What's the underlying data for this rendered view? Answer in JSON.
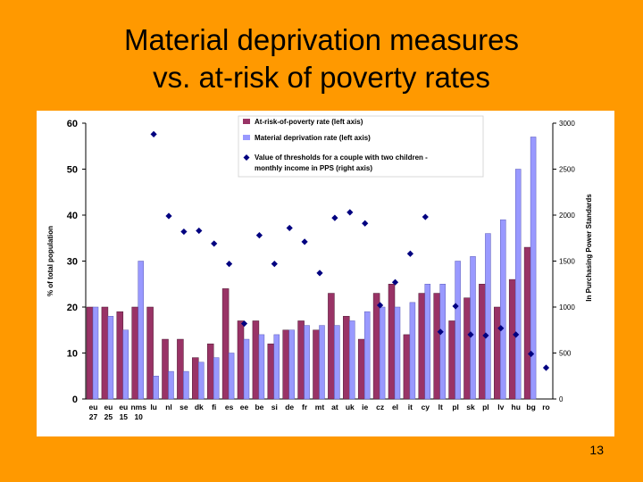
{
  "slide": {
    "title_line1": "Material deprivation measures",
    "title_line2": "vs. at-risk of poverty rates",
    "number": "13"
  },
  "colors": {
    "background": "#FF9900",
    "panel": "#FFFFFF",
    "poverty_bar": "#993366",
    "deprivation_bar": "#9999FF",
    "threshold_marker": "#000080"
  },
  "chart_data": {
    "type": "bar",
    "categories": [
      "eu 27",
      "eu 25",
      "eu 15",
      "nms 10",
      "lu",
      "nl",
      "se",
      "dk",
      "fi",
      "es",
      "ee",
      "be",
      "si",
      "de",
      "fr",
      "mt",
      "at",
      "uk",
      "ie",
      "cz",
      "el",
      "it",
      "cy",
      "lt",
      "pl",
      "sk",
      "pl",
      "lv",
      "hu",
      "bg",
      "ro"
    ],
    "category_lines": [
      [
        "eu",
        "27"
      ],
      [
        "eu",
        "25"
      ],
      [
        "eu",
        "15"
      ],
      [
        "nms",
        "10"
      ],
      [
        "lu"
      ],
      [
        "nl"
      ],
      [
        "se"
      ],
      [
        "dk"
      ],
      [
        "fi"
      ],
      [
        "es"
      ],
      [
        "ee"
      ],
      [
        "be"
      ],
      [
        "si"
      ],
      [
        "de"
      ],
      [
        "fr"
      ],
      [
        "mt"
      ],
      [
        "at"
      ],
      [
        "uk"
      ],
      [
        "ie"
      ],
      [
        "cz"
      ],
      [
        "el"
      ],
      [
        "it"
      ],
      [
        "cy"
      ],
      [
        "lt"
      ],
      [
        "pl"
      ],
      [
        "sk"
      ],
      [
        "pl"
      ],
      [
        "lv"
      ],
      [
        "hu"
      ],
      [
        "bg"
      ],
      [
        "ro"
      ]
    ],
    "series": [
      {
        "name": "At-risk-of-poverty rate (left axis)",
        "axis": "left",
        "kind": "bar",
        "values": [
          20,
          20,
          19,
          20,
          20,
          13,
          13,
          9,
          12,
          24,
          17,
          17,
          12,
          15,
          17,
          15,
          23,
          18,
          13,
          23,
          25,
          14,
          23,
          23,
          17,
          22,
          25,
          20,
          26,
          33,
          null
        ]
      },
      {
        "name": "Material deprivation rate (left axis)",
        "axis": "left",
        "kind": "bar",
        "values": [
          20,
          18,
          15,
          30,
          5,
          6,
          6,
          8,
          9,
          10,
          13,
          14,
          14,
          15,
          16,
          16,
          16,
          17,
          19,
          20,
          20,
          21,
          25,
          25,
          30,
          31,
          36,
          39,
          50,
          57,
          null
        ]
      },
      {
        "name": "Value of thresholds for a couple with two children - monthly income in PPS (right axis)",
        "axis": "right",
        "kind": "marker",
        "values": [
          null,
          null,
          null,
          null,
          2880,
          1990,
          1820,
          1830,
          1690,
          1470,
          820,
          1780,
          1470,
          1860,
          1710,
          1370,
          1970,
          2030,
          1910,
          1020,
          1270,
          1580,
          1980,
          730,
          1010,
          700,
          690,
          770,
          700,
          490,
          340
        ]
      }
    ],
    "left_axis": {
      "label": "% of total population",
      "min": 0,
      "max": 60,
      "ticks": [
        0,
        10,
        20,
        30,
        40,
        50,
        60
      ]
    },
    "right_axis": {
      "label": "In Purchasing Power Standards",
      "min": 0,
      "max": 3000,
      "ticks": [
        0,
        500,
        1000,
        1500,
        2000,
        2500,
        3000
      ]
    },
    "legend_position": "top-center",
    "grid": false
  }
}
